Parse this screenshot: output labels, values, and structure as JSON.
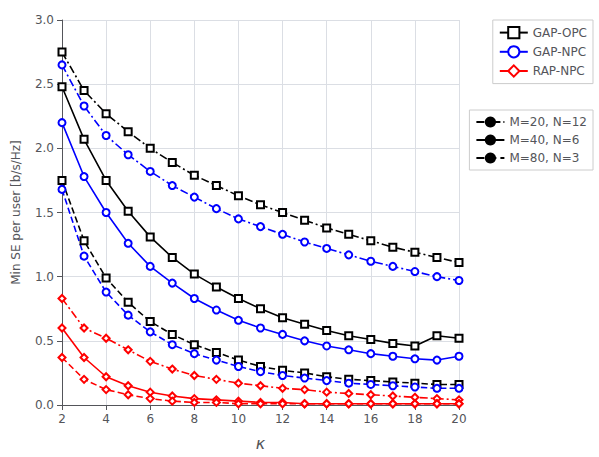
{
  "chart_data": {
    "type": "line",
    "xlabel": "κ",
    "ylabel": "Min SE per user [b/s/Hz]",
    "x": [
      2,
      3,
      4,
      5,
      6,
      7,
      8,
      9,
      10,
      11,
      12,
      13,
      14,
      15,
      16,
      17,
      18,
      19,
      20
    ],
    "series": [
      {
        "name": "GAP-OPC",
        "color": "#000000",
        "marker": "square",
        "line_style": "dashdot",
        "values": [
          2.75,
          2.45,
          2.27,
          2.13,
          2.0,
          1.89,
          1.79,
          1.71,
          1.63,
          1.56,
          1.5,
          1.44,
          1.38,
          1.33,
          1.28,
          1.23,
          1.19,
          1.15,
          1.11
        ]
      },
      {
        "name": "GAP-OPC",
        "color": "#000000",
        "marker": "square",
        "line_style": "solid",
        "values": [
          2.48,
          2.07,
          1.75,
          1.51,
          1.31,
          1.15,
          1.02,
          0.92,
          0.83,
          0.75,
          0.68,
          0.63,
          0.58,
          0.54,
          0.51,
          0.48,
          0.46,
          0.54,
          0.52
        ]
      },
      {
        "name": "GAP-OPC",
        "color": "#000000",
        "marker": "square",
        "line_style": "dashed",
        "values": [
          1.75,
          1.28,
          0.99,
          0.8,
          0.65,
          0.55,
          0.47,
          0.41,
          0.35,
          0.3,
          0.27,
          0.25,
          0.22,
          0.2,
          0.19,
          0.18,
          0.17,
          0.16,
          0.16
        ]
      },
      {
        "name": "GAP-NPC",
        "color": "#0000FF",
        "marker": "circle",
        "line_style": "dashdot",
        "values": [
          2.65,
          2.33,
          2.1,
          1.95,
          1.82,
          1.71,
          1.62,
          1.53,
          1.45,
          1.39,
          1.33,
          1.27,
          1.22,
          1.17,
          1.12,
          1.08,
          1.04,
          1.0,
          0.97
        ]
      },
      {
        "name": "GAP-NPC",
        "color": "#0000FF",
        "marker": "circle",
        "line_style": "solid",
        "values": [
          2.2,
          1.78,
          1.5,
          1.26,
          1.08,
          0.95,
          0.83,
          0.74,
          0.66,
          0.6,
          0.55,
          0.5,
          0.46,
          0.43,
          0.4,
          0.38,
          0.36,
          0.35,
          0.38
        ]
      },
      {
        "name": "GAP-NPC",
        "color": "#0000FF",
        "marker": "circle",
        "line_style": "dashed",
        "values": [
          1.68,
          1.16,
          0.88,
          0.7,
          0.57,
          0.47,
          0.4,
          0.35,
          0.3,
          0.26,
          0.23,
          0.21,
          0.19,
          0.17,
          0.16,
          0.15,
          0.14,
          0.13,
          0.13
        ]
      },
      {
        "name": "RAP-NPC",
        "color": "#FF0000",
        "marker": "diamond",
        "line_style": "dashdot",
        "values": [
          0.83,
          0.6,
          0.52,
          0.43,
          0.34,
          0.28,
          0.23,
          0.2,
          0.17,
          0.15,
          0.13,
          0.12,
          0.1,
          0.09,
          0.08,
          0.07,
          0.06,
          0.05,
          0.04
        ]
      },
      {
        "name": "RAP-NPC",
        "color": "#FF0000",
        "marker": "diamond",
        "line_style": "solid",
        "values": [
          0.6,
          0.37,
          0.22,
          0.15,
          0.1,
          0.07,
          0.05,
          0.04,
          0.03,
          0.02,
          0.02,
          0.01,
          0.01,
          0.01,
          0.01,
          0.01,
          0.01,
          0.01,
          0.01
        ]
      },
      {
        "name": "RAP-NPC",
        "color": "#FF0000",
        "marker": "diamond",
        "line_style": "dashed",
        "values": [
          0.37,
          0.2,
          0.12,
          0.08,
          0.05,
          0.03,
          0.02,
          0.02,
          0.01,
          0.01,
          0.01,
          0.01,
          0.01,
          0.01,
          0.01,
          0.01,
          0.01,
          0.01,
          0.01
        ]
      }
    ],
    "style_legend": [
      {
        "label": "M=20, N=12",
        "line_style": "dashdot",
        "color": "#000000"
      },
      {
        "label": "M=40, N=6",
        "line_style": "solid",
        "color": "#000000"
      },
      {
        "label": "M=80, N=3",
        "line_style": "dashed",
        "color": "#000000"
      }
    ],
    "xlim": [
      2,
      20
    ],
    "ylim": [
      0,
      3
    ],
    "xticks": [
      2,
      4,
      6,
      8,
      10,
      12,
      14,
      16,
      18,
      20
    ],
    "yticks": [
      {
        "value": 0,
        "label": "0.0"
      },
      0.5,
      {
        "value": 1.0,
        "label": "1.0"
      },
      1.5,
      {
        "value": 2.0,
        "label": "2.0"
      },
      2.5,
      {
        "value": 3.0,
        "label": "3.0"
      }
    ],
    "grid": true,
    "legend": "upper right"
  }
}
